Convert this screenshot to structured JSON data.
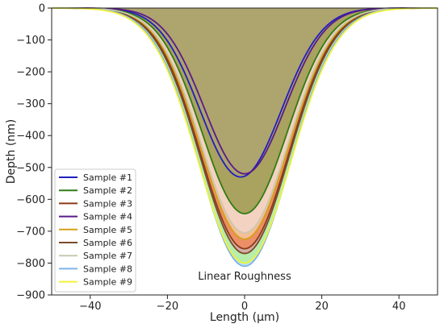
{
  "chart_data": {
    "type": "area",
    "title": "",
    "xlabel": "Length (μm)",
    "ylabel": "Depth (nm)",
    "xlim": [
      -50,
      50
    ],
    "ylim": [
      -900,
      0
    ],
    "xticks": [
      -40,
      -20,
      0,
      20,
      40
    ],
    "yticks": [
      0,
      -100,
      -200,
      -300,
      -400,
      -500,
      -600,
      -700,
      -800,
      -900
    ],
    "grid": false,
    "legend_position": "lower-left",
    "annotation": "Linear Roughness",
    "fill_color": "#aea46f",
    "series": [
      {
        "name": "Sample #1",
        "color": "#1f1fbf",
        "depth": -530,
        "width": 10.5,
        "min_x": -1,
        "fill": "#aea46f"
      },
      {
        "name": "Sample #2",
        "color": "#2e7d12",
        "depth": -645,
        "width": 11.0,
        "min_x": 0,
        "fill": "#9c9a4d"
      },
      {
        "name": "Sample #3",
        "color": "#8b3a1a",
        "depth": -755,
        "width": 11.4,
        "min_x": 0,
        "fill": "#f08a5d"
      },
      {
        "name": "Sample #4",
        "color": "#5a1a8a",
        "depth": -520,
        "width": 10.4,
        "min_x": 0,
        "fill": "#aea46f"
      },
      {
        "name": "Sample #5",
        "color": "#d4a017",
        "depth": -725,
        "width": 11.3,
        "min_x": 0,
        "fill": "#f6c7a0"
      },
      {
        "name": "Sample #6",
        "color": "#7a4a2a",
        "depth": -770,
        "width": 11.5,
        "min_x": 0,
        "fill": "#d9a3a0"
      },
      {
        "name": "Sample #7",
        "color": "#c9c9b0",
        "depth": -705,
        "width": 11.2,
        "min_x": 0,
        "fill": "#f3d6c8"
      },
      {
        "name": "Sample #8",
        "color": "#7fb2e8",
        "depth": -810,
        "width": 11.7,
        "min_x": 0,
        "fill": "#a8ddf0"
      },
      {
        "name": "Sample #9",
        "color": "#f2f23a",
        "depth": -800,
        "width": 11.9,
        "min_x": 0,
        "fill": "#b6f0a0"
      }
    ]
  }
}
